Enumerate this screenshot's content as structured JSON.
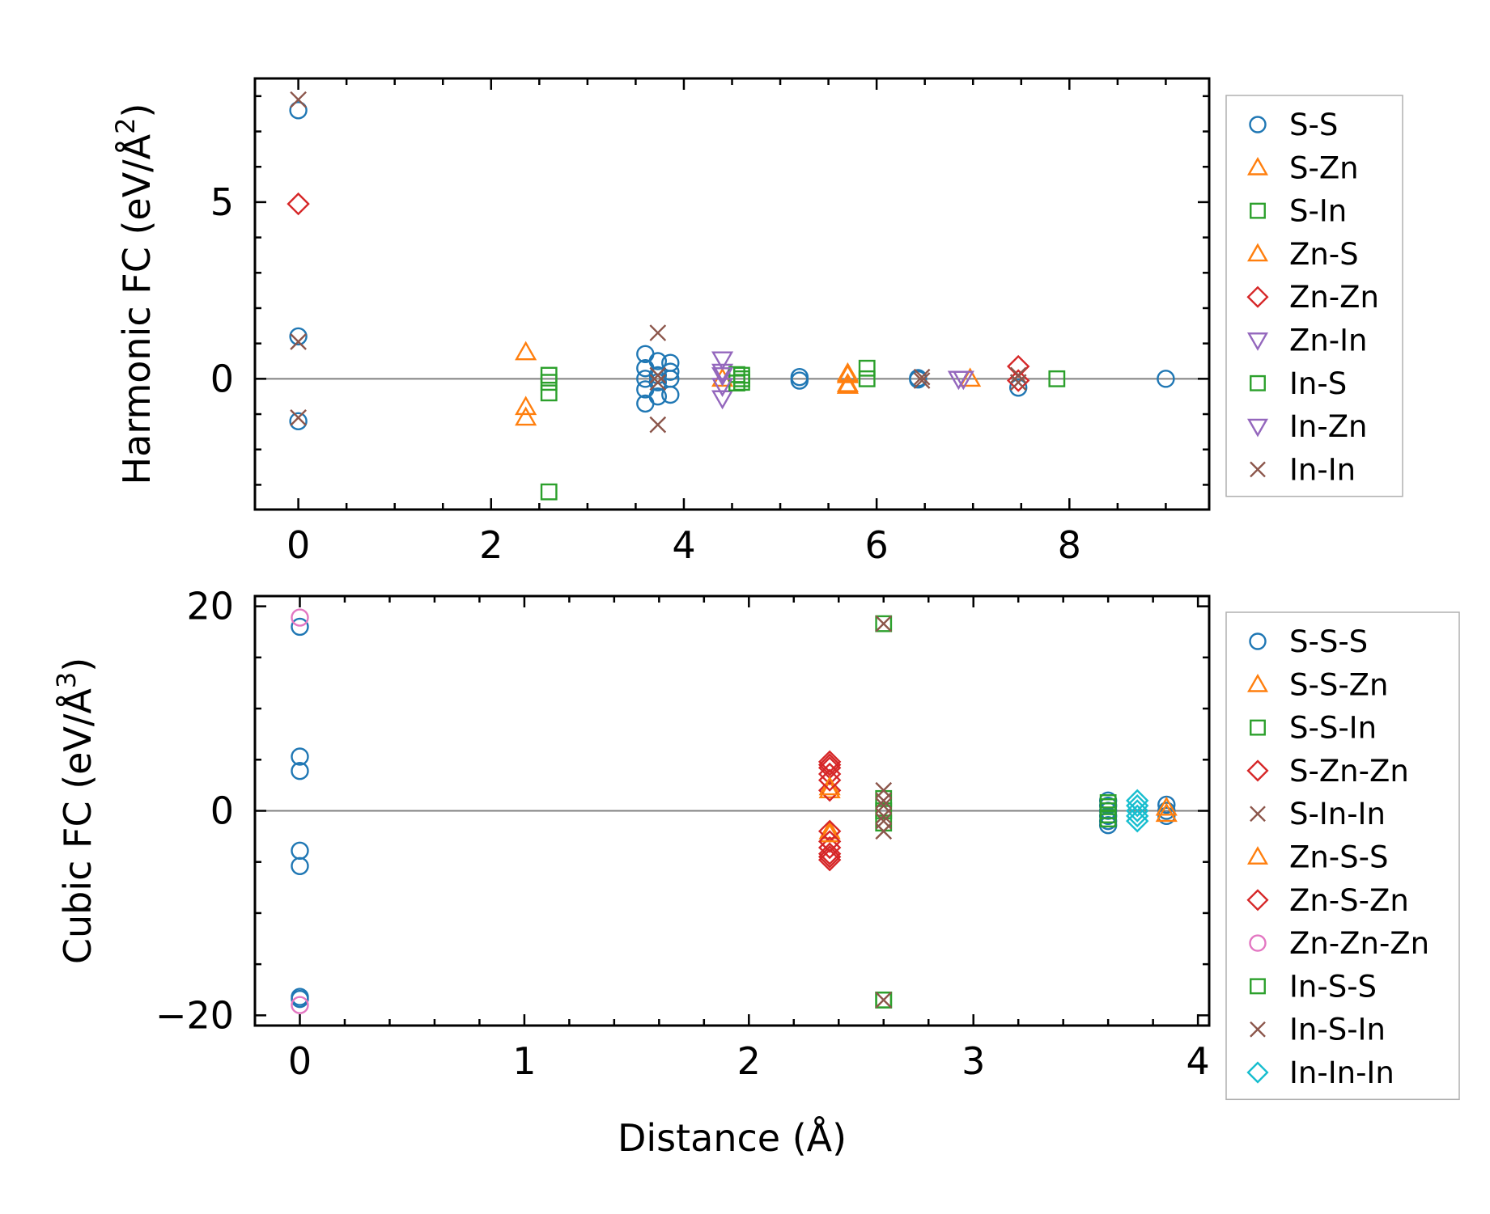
{
  "colors": {
    "blue": "#1f77b4",
    "orange": "#ff7f0e",
    "green": "#2ca02c",
    "red": "#d62728",
    "purple": "#9467bd",
    "brown": "#8c564b",
    "pink": "#e377c2",
    "cyan": "#17becf",
    "zero": "#808080"
  },
  "chart_data": [
    {
      "type": "scatter",
      "name": "harmonic",
      "title": "",
      "xlabel": "",
      "ylabel": "Harmonic FC (eV/Å²)",
      "ylabel_main": "Harmonic FC (eV/Å",
      "ylabel_sup": "2",
      "ylabel_end": ")",
      "xlim": [
        -0.45,
        9.45
      ],
      "ylim": [
        -3.7,
        8.5
      ],
      "xticks": [
        0,
        2,
        4,
        6,
        8
      ],
      "xtick_labels": [
        "0",
        "2",
        "4",
        "6",
        "8"
      ],
      "yticks": [
        0,
        5
      ],
      "ytick_labels": [
        "0",
        "5"
      ],
      "legend_position": "right",
      "series": [
        {
          "name": "S-S",
          "marker": "circle",
          "color": "#1f77b4",
          "x": [
            0,
            0,
            0,
            3.6,
            3.6,
            3.6,
            3.6,
            3.6,
            3.73,
            3.73,
            3.73,
            3.73,
            3.86,
            3.86,
            3.86,
            3.86,
            5.2,
            5.2,
            6.43,
            6.43,
            7.47,
            9.0
          ],
          "y": [
            7.6,
            1.2,
            -1.2,
            0.7,
            0.3,
            -0.3,
            -0.7,
            0.0,
            0.5,
            0.1,
            -0.1,
            -0.5,
            0.45,
            0.0,
            -0.45,
            0.2,
            0.05,
            -0.05,
            0.02,
            -0.02,
            -0.25,
            0.0
          ]
        },
        {
          "name": "S-Zn",
          "marker": "triangle-up",
          "color": "#ff7f0e",
          "x": [
            2.36,
            2.36,
            2.36,
            5.7,
            5.7,
            6.97
          ],
          "y": [
            0.75,
            -0.8,
            -1.1,
            0.1,
            -0.2,
            0.0
          ]
        },
        {
          "name": "S-In",
          "marker": "square",
          "color": "#2ca02c",
          "x": [
            2.6,
            2.6,
            2.6,
            2.6,
            4.6,
            4.6,
            5.9,
            5.9,
            7.87
          ],
          "y": [
            0.1,
            -0.1,
            -0.4,
            -3.2,
            0.1,
            -0.1,
            0.3,
            0.0,
            0.0
          ]
        },
        {
          "name": "Zn-S",
          "marker": "triangle-up",
          "color": "#ff7f0e",
          "x": [
            4.4,
            5.7,
            5.7
          ],
          "y": [
            0.0,
            0.15,
            -0.15
          ]
        },
        {
          "name": "Zn-Zn",
          "marker": "diamond",
          "color": "#d62728",
          "x": [
            0,
            7.47,
            7.47
          ],
          "y": [
            4.95,
            0.35,
            -0.05
          ]
        },
        {
          "name": "Zn-In",
          "marker": "triangle-down",
          "color": "#9467bd",
          "x": [
            4.4,
            4.4,
            4.4,
            6.9
          ],
          "y": [
            0.55,
            0.2,
            -0.55,
            0.0
          ]
        },
        {
          "name": "In-S",
          "marker": "square",
          "color": "#2ca02c",
          "x": [
            4.55,
            4.55,
            4.6
          ],
          "y": [
            0.12,
            -0.12,
            0.0
          ]
        },
        {
          "name": "In-Zn",
          "marker": "triangle-down",
          "color": "#9467bd",
          "x": [
            4.4,
            4.4,
            6.85
          ],
          "y": [
            0.1,
            -0.2,
            0.0
          ]
        },
        {
          "name": "In-In",
          "marker": "x",
          "color": "#8c564b",
          "x": [
            0,
            0,
            0,
            3.73,
            3.73,
            3.73,
            3.73,
            6.47,
            6.47,
            7.47,
            7.47
          ],
          "y": [
            7.9,
            1.05,
            -1.1,
            1.3,
            -1.3,
            0.1,
            -0.1,
            0.05,
            -0.05,
            0.1,
            -0.1
          ]
        }
      ]
    },
    {
      "type": "scatter",
      "name": "cubic",
      "title": "",
      "xlabel": "Distance (Å)",
      "ylabel": "Cubic FC (eV/Å³)",
      "ylabel_main": "Cubic FC (eV/Å",
      "ylabel_sup": "3",
      "ylabel_end": ")",
      "xlim": [
        -0.2,
        4.05
      ],
      "ylim": [
        -21,
        21
      ],
      "xticks": [
        0,
        1,
        2,
        3,
        4
      ],
      "xtick_labels": [
        "0",
        "1",
        "2",
        "3",
        "4"
      ],
      "yticks": [
        -20,
        0,
        20
      ],
      "ytick_labels": [
        "−20",
        "0",
        "20"
      ],
      "legend_position": "right",
      "series": [
        {
          "name": "S-S-S",
          "marker": "circle",
          "color": "#1f77b4",
          "x": [
            0,
            0,
            0,
            0,
            0,
            0,
            0,
            3.6,
            3.6,
            3.6,
            3.6,
            3.6,
            3.6,
            3.86,
            3.86,
            3.86
          ],
          "y": [
            18.0,
            5.3,
            3.9,
            -3.9,
            -5.4,
            -18.4,
            -18.2,
            1.0,
            0.5,
            0.0,
            -0.5,
            -1.0,
            -1.4,
            0.6,
            0.0,
            -0.5
          ]
        },
        {
          "name": "S-S-Zn",
          "marker": "triangle-up",
          "color": "#ff7f0e",
          "x": [
            2.36,
            2.36,
            3.86,
            3.86
          ],
          "y": [
            2.0,
            -2.0,
            0.3,
            -0.3
          ]
        },
        {
          "name": "S-S-In",
          "marker": "square",
          "color": "#2ca02c",
          "x": [
            2.6,
            2.6,
            2.6,
            2.6,
            2.6,
            3.6,
            3.6
          ],
          "y": [
            18.3,
            1.2,
            0.0,
            -1.2,
            -18.5,
            0.4,
            -0.4
          ]
        },
        {
          "name": "S-Zn-Zn",
          "marker": "diamond",
          "color": "#d62728",
          "x": [
            2.36,
            2.36,
            2.36,
            2.36,
            2.36,
            2.36,
            2.36,
            2.36
          ],
          "y": [
            4.8,
            4.2,
            3.6,
            2.0,
            -2.0,
            -3.6,
            -4.2,
            -4.8
          ]
        },
        {
          "name": "S-In-In",
          "marker": "x",
          "color": "#8c564b",
          "x": [
            2.6,
            2.6,
            2.6,
            2.6,
            2.6
          ],
          "y": [
            2.0,
            1.0,
            -1.0,
            -2.0,
            18.3
          ]
        },
        {
          "name": "Zn-S-S",
          "marker": "triangle-up",
          "color": "#ff7f0e",
          "x": [
            2.36,
            2.36
          ],
          "y": [
            2.3,
            -2.3
          ]
        },
        {
          "name": "Zn-S-Zn",
          "marker": "diamond",
          "color": "#d62728",
          "x": [
            2.36,
            2.36,
            2.36,
            2.36
          ],
          "y": [
            4.5,
            3.0,
            -3.0,
            -4.5
          ]
        },
        {
          "name": "Zn-Zn-Zn",
          "marker": "circle",
          "color": "#e377c2",
          "x": [
            0,
            0
          ],
          "y": [
            18.9,
            -19.0
          ]
        },
        {
          "name": "In-S-S",
          "marker": "square",
          "color": "#2ca02c",
          "x": [
            2.6,
            3.6,
            3.6,
            3.6
          ],
          "y": [
            -18.5,
            0.8,
            0.0,
            -0.8
          ]
        },
        {
          "name": "In-S-In",
          "marker": "x",
          "color": "#8c564b",
          "x": [
            2.6,
            2.6,
            2.6
          ],
          "y": [
            -18.5,
            0.5,
            -0.5
          ]
        },
        {
          "name": "In-In-In",
          "marker": "diamond",
          "color": "#17becf",
          "x": [
            3.73,
            3.73,
            3.73,
            3.73,
            3.73
          ],
          "y": [
            1.0,
            0.5,
            0.0,
            -0.5,
            -1.0
          ]
        }
      ]
    }
  ]
}
